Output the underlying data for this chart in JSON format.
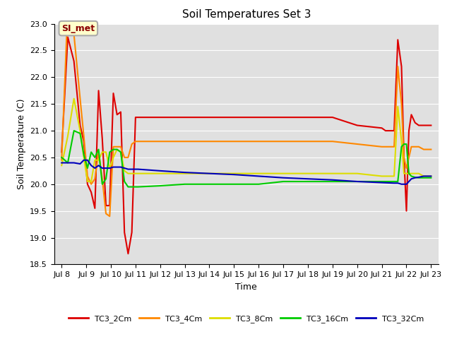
{
  "title": "Soil Temperatures Set 3",
  "xlabel": "Time",
  "ylabel": "Soil Temperature (C)",
  "ylim": [
    18.5,
    23.0
  ],
  "xlim": [
    7.7,
    23.3
  ],
  "bg_color": "#e0e0e0",
  "annotation_text": "SI_met",
  "annotation_bg": "#ffffcc",
  "annotation_border": "#aaaaaa",
  "series": {
    "TC3_2Cm": {
      "color": "#dd0000",
      "data_x": [
        8.0,
        8.25,
        8.5,
        8.75,
        8.9,
        9.05,
        9.2,
        9.35,
        9.5,
        9.65,
        9.8,
        9.95,
        10.1,
        10.25,
        10.4,
        10.55,
        10.7,
        10.85,
        11.0,
        11.1,
        12.0,
        13.0,
        14.0,
        15.0,
        16.0,
        17.0,
        18.0,
        19.0,
        20.0,
        21.0,
        21.15,
        21.5,
        21.65,
        21.8,
        21.9,
        22.0,
        22.1,
        22.2,
        22.35,
        22.5,
        22.7,
        22.85,
        23.0
      ],
      "data_y": [
        20.6,
        22.75,
        22.3,
        21.1,
        20.8,
        20.0,
        19.85,
        19.55,
        21.75,
        20.85,
        19.6,
        19.6,
        21.7,
        21.3,
        21.35,
        19.1,
        18.7,
        19.1,
        21.25,
        21.25,
        21.25,
        21.25,
        21.25,
        21.25,
        21.25,
        21.25,
        21.25,
        21.25,
        21.1,
        21.05,
        21.0,
        21.0,
        22.7,
        22.2,
        20.5,
        19.5,
        21.0,
        21.3,
        21.15,
        21.1,
        21.1,
        21.1,
        21.1
      ]
    },
    "TC3_4Cm": {
      "color": "#ff8800",
      "data_x": [
        8.0,
        8.25,
        8.5,
        8.75,
        8.9,
        9.05,
        9.2,
        9.35,
        9.5,
        9.65,
        9.8,
        9.95,
        10.1,
        10.25,
        10.4,
        10.55,
        10.7,
        10.85,
        11.0,
        11.1,
        12.0,
        13.0,
        14.0,
        15.0,
        16.0,
        17.0,
        18.0,
        19.0,
        20.0,
        21.0,
        21.5,
        21.65,
        21.8,
        21.9,
        22.0,
        22.1,
        22.2,
        22.35,
        22.5,
        22.7,
        22.85,
        23.0
      ],
      "data_y": [
        20.45,
        23.3,
        22.8,
        21.6,
        20.9,
        20.15,
        20.0,
        20.1,
        20.6,
        20.1,
        19.45,
        19.4,
        20.7,
        20.7,
        20.7,
        20.5,
        20.5,
        20.75,
        20.8,
        20.8,
        20.8,
        20.8,
        20.8,
        20.8,
        20.8,
        20.8,
        20.8,
        20.8,
        20.75,
        20.7,
        20.7,
        22.2,
        21.5,
        20.5,
        20.3,
        20.5,
        20.7,
        20.7,
        20.7,
        20.65,
        20.65,
        20.65
      ]
    },
    "TC3_8Cm": {
      "color": "#dddd00",
      "data_x": [
        8.0,
        8.25,
        8.5,
        8.75,
        8.9,
        9.05,
        9.2,
        9.35,
        9.5,
        9.65,
        9.8,
        9.95,
        10.1,
        10.25,
        10.4,
        10.55,
        10.7,
        10.85,
        11.0,
        11.1,
        12.0,
        13.0,
        14.0,
        15.0,
        16.0,
        17.0,
        18.0,
        19.0,
        20.0,
        21.0,
        21.5,
        21.65,
        21.8,
        21.9,
        22.0,
        22.1,
        22.2,
        22.35,
        22.5,
        22.7,
        22.85,
        23.0
      ],
      "data_y": [
        20.35,
        20.9,
        21.6,
        21.0,
        20.5,
        20.05,
        20.05,
        20.45,
        20.45,
        20.6,
        20.6,
        20.3,
        20.5,
        20.65,
        20.6,
        20.25,
        20.2,
        20.2,
        20.2,
        20.2,
        20.2,
        20.2,
        20.2,
        20.2,
        20.2,
        20.2,
        20.2,
        20.2,
        20.2,
        20.15,
        20.15,
        21.45,
        20.8,
        20.2,
        20.2,
        20.2,
        20.2,
        20.2,
        20.2,
        20.15,
        20.15,
        20.15
      ]
    },
    "TC3_16Cm": {
      "color": "#00cc00",
      "data_x": [
        8.0,
        8.25,
        8.5,
        8.75,
        8.9,
        9.05,
        9.2,
        9.35,
        9.5,
        9.65,
        9.8,
        9.95,
        10.1,
        10.25,
        10.4,
        10.55,
        10.7,
        10.85,
        11.0,
        11.1,
        12.0,
        13.0,
        14.0,
        15.0,
        16.0,
        17.0,
        18.0,
        19.0,
        20.0,
        21.0,
        21.5,
        21.65,
        21.8,
        21.9,
        22.0,
        22.1,
        22.2,
        22.35,
        22.5,
        22.7,
        22.85,
        23.0
      ],
      "data_y": [
        20.5,
        20.4,
        21.0,
        20.95,
        20.55,
        20.3,
        20.6,
        20.5,
        20.65,
        20.0,
        20.1,
        20.6,
        20.65,
        20.65,
        20.6,
        20.05,
        19.95,
        19.95,
        19.95,
        19.95,
        19.97,
        20.0,
        20.0,
        20.0,
        20.0,
        20.05,
        20.05,
        20.05,
        20.05,
        20.05,
        20.05,
        20.05,
        20.7,
        20.75,
        20.75,
        20.2,
        20.15,
        20.13,
        20.12,
        20.12,
        20.12,
        20.12
      ]
    },
    "TC3_32Cm": {
      "color": "#0000bb",
      "data_x": [
        8.0,
        8.25,
        8.5,
        8.75,
        8.9,
        9.05,
        9.2,
        9.35,
        9.5,
        9.65,
        9.8,
        9.95,
        10.1,
        10.25,
        10.4,
        10.55,
        10.7,
        10.85,
        11.0,
        11.1,
        12.0,
        13.0,
        14.0,
        15.0,
        16.0,
        17.0,
        18.0,
        19.0,
        20.0,
        21.0,
        21.5,
        21.65,
        21.8,
        21.9,
        22.0,
        22.1,
        22.2,
        22.35,
        22.5,
        22.7,
        22.85,
        23.0
      ],
      "data_y": [
        20.4,
        20.4,
        20.4,
        20.38,
        20.45,
        20.45,
        20.35,
        20.3,
        20.35,
        20.3,
        20.3,
        20.3,
        20.32,
        20.32,
        20.32,
        20.3,
        20.28,
        20.28,
        20.28,
        20.28,
        20.25,
        20.22,
        20.2,
        20.18,
        20.15,
        20.12,
        20.1,
        20.08,
        20.05,
        20.03,
        20.02,
        20.02,
        20.0,
        20.0,
        20.0,
        20.05,
        20.1,
        20.12,
        20.13,
        20.15,
        20.15,
        20.15
      ]
    }
  },
  "xtick_labels": [
    "Jul 8",
    "Jul 9",
    "Jul 10",
    "Jul 11",
    "Jul 12",
    "Jul 13",
    "Jul 14",
    "Jul 15",
    "Jul 16",
    "Jul 17",
    "Jul 18",
    "Jul 19",
    "Jul 20",
    "Jul 21",
    "Jul 22",
    "Jul 23"
  ],
  "xtick_positions": [
    8,
    9,
    10,
    11,
    12,
    13,
    14,
    15,
    16,
    17,
    18,
    19,
    20,
    21,
    22,
    23
  ],
  "ytick_positions": [
    18.5,
    19.0,
    19.5,
    20.0,
    20.5,
    21.0,
    21.5,
    22.0,
    22.5,
    23.0
  ],
  "legend_labels": [
    "TC3_2Cm",
    "TC3_4Cm",
    "TC3_8Cm",
    "TC3_16Cm",
    "TC3_32Cm"
  ],
  "legend_colors": [
    "#dd0000",
    "#ff8800",
    "#dddd00",
    "#00cc00",
    "#0000bb"
  ]
}
